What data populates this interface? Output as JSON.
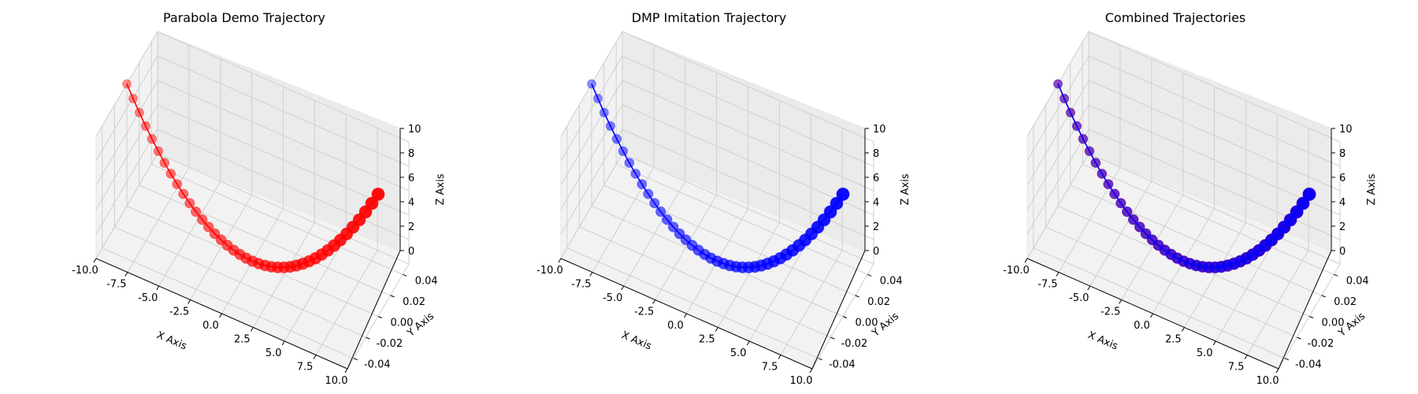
{
  "chart_data": [
    {
      "type": "scatter3d",
      "title": "Parabola Demo Trajectory",
      "xlabel": "X Axis",
      "ylabel": "Y Axis",
      "zlabel": "Z Axis",
      "xlim": [
        -10,
        10
      ],
      "ylim": [
        -0.05,
        0.05
      ],
      "zlim": [
        0,
        10
      ],
      "xticks": [
        "-10.0",
        "-7.5",
        "-5.0",
        "-2.5",
        "0.0",
        "2.5",
        "5.0",
        "7.5",
        "10.0"
      ],
      "yticks": [
        "-0.04",
        "-0.02",
        "0.00",
        "0.02",
        "0.04"
      ],
      "zticks": [
        "0",
        "2",
        "4",
        "6",
        "8",
        "10"
      ],
      "grid": true,
      "series": [
        {
          "color": "#ff0000",
          "line": true,
          "x_range": [
            -10,
            10
          ],
          "points": 41,
          "z": "x^2/10",
          "y": 0
        }
      ]
    },
    {
      "type": "scatter3d",
      "title": "DMP Imitation Trajectory",
      "xlabel": "X Axis",
      "ylabel": "Y Axis",
      "zlabel": "Z Axis",
      "xlim": [
        -10,
        10
      ],
      "ylim": [
        -0.05,
        0.05
      ],
      "zlim": [
        0,
        10
      ],
      "xticks": [
        "-10.0",
        "-7.5",
        "-5.0",
        "-2.5",
        "0.0",
        "2.5",
        "5.0",
        "7.5",
        "10.0"
      ],
      "yticks": [
        "-0.04",
        "-0.02",
        "0.00",
        "0.02",
        "0.04"
      ],
      "zticks": [
        "0",
        "2",
        "4",
        "6",
        "8",
        "10"
      ],
      "grid": true,
      "series": [
        {
          "color": "#0000ff",
          "line": true,
          "x_range": [
            -10,
            10
          ],
          "points": 41,
          "z": "x^2/10",
          "y": 0
        }
      ]
    },
    {
      "type": "scatter3d",
      "title": "Combined Trajectories",
      "xlabel": "X Axis",
      "ylabel": "Y Axis",
      "zlabel": "Z Axis",
      "xlim": [
        -10,
        10
      ],
      "ylim": [
        -0.05,
        0.05
      ],
      "zlim": [
        0,
        10
      ],
      "xticks": [
        "-10.0",
        "-7.5",
        "-5.0",
        "-2.5",
        "0.0",
        "2.5",
        "5.0",
        "7.5",
        "10.0"
      ],
      "yticks": [
        "-0.04",
        "-0.02",
        "0.00",
        "0.02",
        "0.04"
      ],
      "zticks": [
        "0",
        "2",
        "4",
        "6",
        "8",
        "10"
      ],
      "grid": true,
      "series": [
        {
          "color": "#ff0000",
          "line": true,
          "x_range": [
            -10,
            10
          ],
          "points": 41,
          "z": "x^2/10",
          "y": 0
        },
        {
          "color": "#0000ff",
          "line": true,
          "x_range": [
            -10,
            10
          ],
          "points": 41,
          "z": "x^2/10",
          "y": 0
        }
      ]
    }
  ]
}
